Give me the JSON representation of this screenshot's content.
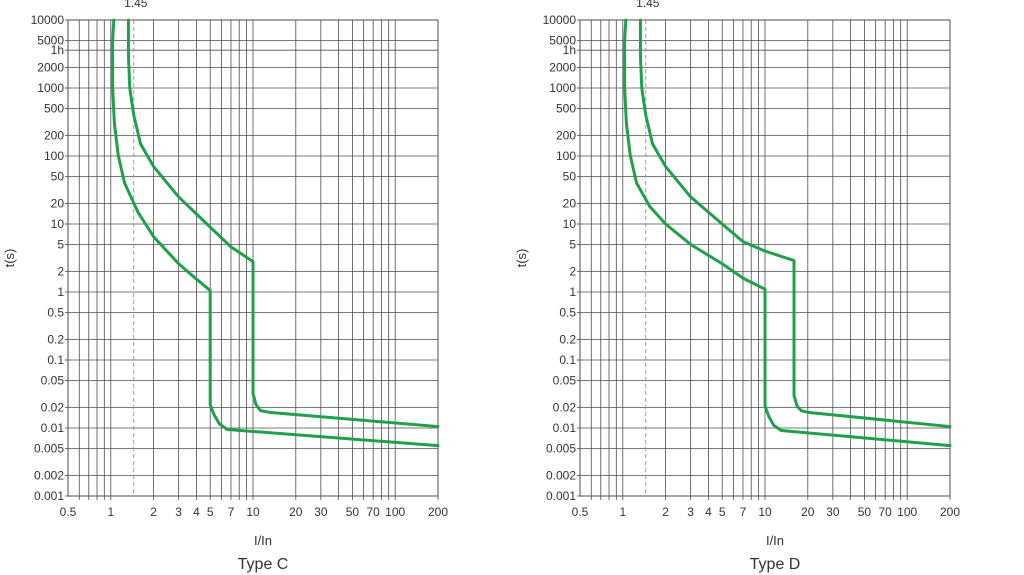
{
  "colors": {
    "curve": "#1fa04a",
    "grid": "#4d4d4d",
    "marker": "#9a9a9a",
    "text": "#333333"
  },
  "chart_data": [
    {
      "type": "line",
      "caption": "Type C",
      "xlabel": "I/In",
      "ylabel": "t(s)",
      "x_scale": "log",
      "y_scale": "log",
      "xlim": [
        0.5,
        200
      ],
      "ylim": [
        0.001,
        10000
      ],
      "x_tick_values": [
        0.5,
        1,
        2,
        3,
        4,
        5,
        7,
        10,
        20,
        30,
        50,
        70,
        100,
        200
      ],
      "x_tick_labels": [
        "0.5",
        "1",
        "2",
        "3",
        "4",
        "5",
        "7",
        "10",
        "20",
        "30",
        "50",
        "70",
        "100",
        "200"
      ],
      "y_tick_values": [
        0.001,
        0.002,
        0.005,
        0.01,
        0.02,
        0.05,
        0.1,
        0.2,
        0.5,
        1,
        2,
        5,
        10,
        20,
        50,
        100,
        200,
        500,
        1000,
        2000,
        3600,
        5000,
        10000
      ],
      "y_tick_labels": [
        "0.001",
        "0.002",
        "0.005",
        "0.01",
        "0.02",
        "0.05",
        "0.1",
        "0.2",
        "0.5",
        "1",
        "2",
        "5",
        "10",
        "20",
        "50",
        "100",
        "200",
        "500",
        "1000",
        "2000",
        "1h",
        "5000",
        "10000"
      ],
      "x_grid": [
        0.6,
        0.7,
        0.8,
        0.9,
        1,
        2,
        3,
        4,
        5,
        6,
        7,
        8,
        9,
        10,
        20,
        30,
        40,
        50,
        60,
        70,
        80,
        90,
        100,
        200
      ],
      "y_grid": [
        0.001,
        0.002,
        0.005,
        0.01,
        0.02,
        0.05,
        0.1,
        0.2,
        0.5,
        1,
        2,
        5,
        10,
        20,
        50,
        100,
        200,
        500,
        1000,
        2000,
        3600,
        5000,
        10000
      ],
      "marker": {
        "x": 1.45,
        "label": "1.45"
      },
      "series": [
        {
          "points": [
            [
              1.05,
              10000
            ],
            [
              1.03,
              5000
            ],
            [
              1.03,
              1000
            ],
            [
              1.06,
              300
            ],
            [
              1.13,
              100
            ],
            [
              1.25,
              40
            ],
            [
              1.55,
              15
            ],
            [
              2,
              6.5
            ],
            [
              3,
              2.6
            ],
            [
              4,
              1.55
            ],
            [
              5,
              1.05
            ],
            [
              5,
              0.022
            ],
            [
              5.3,
              0.016
            ],
            [
              5.8,
              0.0115
            ],
            [
              6.6,
              0.0095
            ],
            [
              200,
              0.0055
            ]
          ]
        },
        {
          "points": [
            [
              1.33,
              10000
            ],
            [
              1.33,
              3000
            ],
            [
              1.36,
              1000
            ],
            [
              1.45,
              400
            ],
            [
              1.62,
              150
            ],
            [
              2,
              70
            ],
            [
              3,
              25
            ],
            [
              5,
              9
            ],
            [
              7,
              4.6
            ],
            [
              10,
              2.8
            ],
            [
              10,
              0.032
            ],
            [
              10.5,
              0.022
            ],
            [
              11.3,
              0.018
            ],
            [
              13,
              0.017
            ],
            [
              200,
              0.0105
            ]
          ]
        }
      ]
    },
    {
      "type": "line",
      "caption": "Type  D",
      "xlabel": "I/In",
      "ylabel": "t(s)",
      "x_scale": "log",
      "y_scale": "log",
      "xlim": [
        0.5,
        200
      ],
      "ylim": [
        0.001,
        10000
      ],
      "x_tick_values": [
        0.5,
        1,
        2,
        3,
        4,
        5,
        7,
        10,
        20,
        30,
        50,
        70,
        100,
        200
      ],
      "x_tick_labels": [
        "0.5",
        "1",
        "2",
        "3",
        "4",
        "5",
        "7",
        "10",
        "20",
        "30",
        "50",
        "70",
        "100",
        "200"
      ],
      "y_tick_values": [
        0.001,
        0.002,
        0.005,
        0.01,
        0.02,
        0.05,
        0.1,
        0.2,
        0.5,
        1,
        2,
        5,
        10,
        20,
        50,
        100,
        200,
        500,
        1000,
        2000,
        3600,
        5000,
        10000
      ],
      "y_tick_labels": [
        "0.001",
        "0.002",
        "0.005",
        "0.01",
        "0.02",
        "0.05",
        "0.1",
        "0.2",
        "0.5",
        "1",
        "2",
        "5",
        "10",
        "20",
        "50",
        "100",
        "200",
        "500",
        "1000",
        "2000",
        "1h",
        "5000",
        "10000"
      ],
      "x_grid": [
        0.6,
        0.7,
        0.8,
        0.9,
        1,
        2,
        3,
        4,
        5,
        6,
        7,
        8,
        9,
        10,
        20,
        30,
        40,
        50,
        60,
        70,
        80,
        90,
        100,
        200
      ],
      "y_grid": [
        0.001,
        0.002,
        0.005,
        0.01,
        0.02,
        0.05,
        0.1,
        0.2,
        0.5,
        1,
        2,
        5,
        10,
        20,
        50,
        100,
        200,
        500,
        1000,
        2000,
        3600,
        5000,
        10000
      ],
      "marker": {
        "x": 1.45,
        "label": "1.45"
      },
      "series": [
        {
          "points": [
            [
              1.05,
              10000
            ],
            [
              1.03,
              5000
            ],
            [
              1.03,
              1000
            ],
            [
              1.06,
              300
            ],
            [
              1.13,
              100
            ],
            [
              1.25,
              40
            ],
            [
              1.55,
              18
            ],
            [
              2,
              10
            ],
            [
              3,
              5
            ],
            [
              5,
              2.6
            ],
            [
              7,
              1.6
            ],
            [
              10,
              1.1
            ],
            [
              10,
              0.021
            ],
            [
              10.6,
              0.015
            ],
            [
              11.5,
              0.011
            ],
            [
              13,
              0.0092
            ],
            [
              200,
              0.0055
            ]
          ]
        },
        {
          "points": [
            [
              1.33,
              10000
            ],
            [
              1.33,
              3000
            ],
            [
              1.36,
              1000
            ],
            [
              1.45,
              400
            ],
            [
              1.62,
              150
            ],
            [
              2,
              70
            ],
            [
              3,
              25
            ],
            [
              5,
              10
            ],
            [
              7,
              5.5
            ],
            [
              10,
              4
            ],
            [
              16,
              2.9
            ],
            [
              16,
              0.03
            ],
            [
              16.8,
              0.021
            ],
            [
              18,
              0.018
            ],
            [
              20,
              0.017
            ],
            [
              200,
              0.0105
            ]
          ]
        }
      ]
    }
  ]
}
